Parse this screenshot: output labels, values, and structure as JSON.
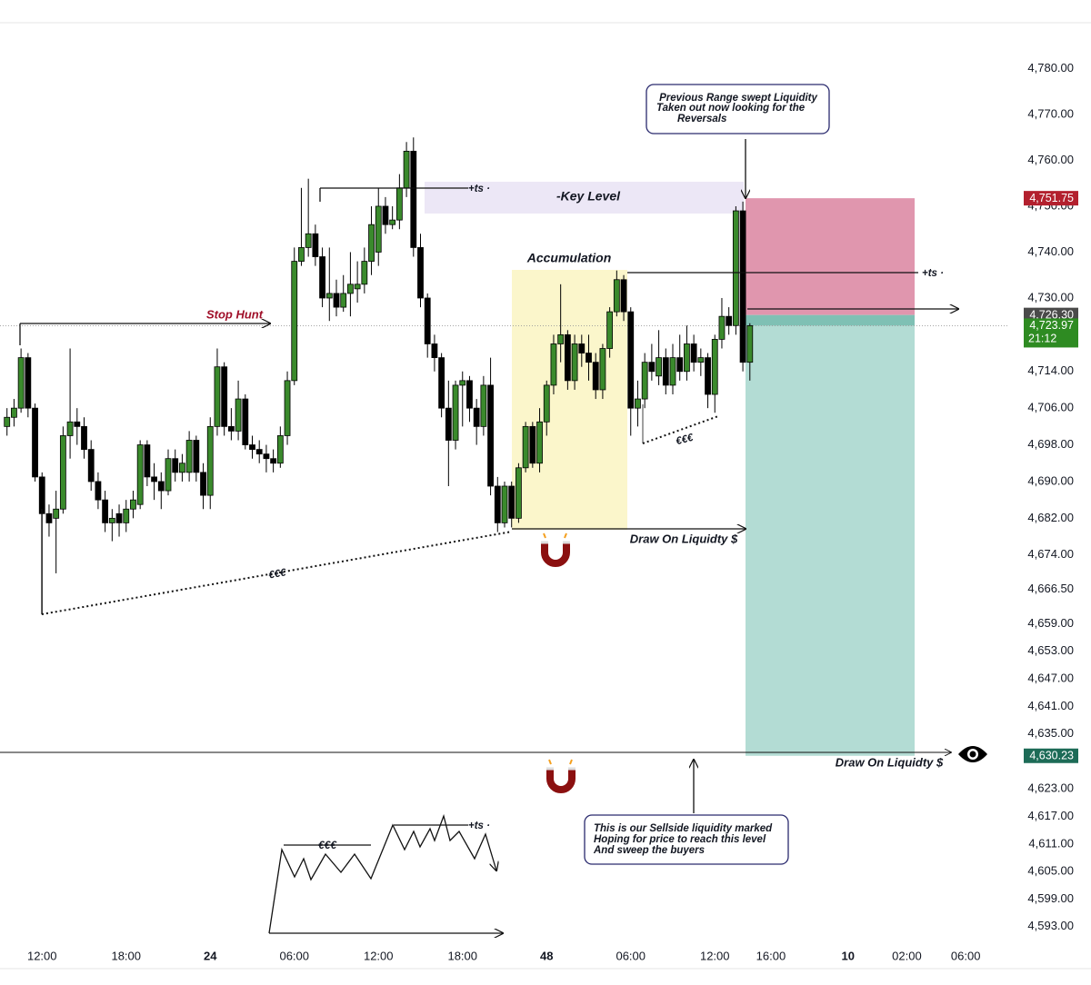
{
  "chart_data": {
    "type": "candlestick",
    "x": [
      9.5,
      10,
      10.5,
      11,
      11.5,
      12,
      12.5,
      13,
      13.5,
      14,
      14.5,
      15,
      15.5,
      16,
      16.5,
      17,
      17.5,
      18,
      18.5,
      19,
      19.5,
      20,
      20.5,
      21,
      21.5,
      22,
      22.5,
      23,
      23.5,
      24,
      24.5,
      25,
      25.5,
      26,
      26.5,
      27,
      27.5,
      28,
      28.5,
      29,
      29.5,
      30,
      30.5,
      31,
      31.5,
      32,
      32.5,
      33,
      33.5,
      34,
      34.5,
      35,
      35.5,
      36,
      36.5,
      37,
      37.5,
      38,
      38.5,
      39,
      39.5,
      40,
      40.5,
      41,
      41.5,
      42,
      42.5,
      43,
      43.5,
      44,
      44.5,
      45,
      45.5,
      46,
      46.5,
      47,
      47.5,
      48,
      48.5,
      49,
      49.5,
      50,
      50.5,
      51,
      51.5,
      52,
      52.5,
      53,
      53.5,
      54,
      54.5,
      55,
      55.5,
      56,
      56.5,
      57,
      57.5,
      58,
      58.5,
      59,
      59.5,
      60,
      60.5,
      61,
      61.5,
      62,
      62.5
    ],
    "open": [
      4702,
      4704,
      4706,
      4717,
      4706,
      4691,
      4683,
      4682,
      4684,
      4700,
      4703,
      4702,
      4697,
      4690,
      4686,
      4681,
      4683,
      4681,
      4684,
      4685,
      4698,
      4691,
      4690,
      4688,
      4695,
      4692,
      4692,
      4699,
      4692,
      4687,
      4702,
      4715,
      4702,
      4701,
      4708,
      4698,
      4697,
      4696,
      4695,
      4694,
      4700,
      4712,
      4738,
      4741,
      4744,
      4739,
      4730,
      4731,
      4728,
      4731,
      4732,
      4733,
      4738,
      4740,
      4750,
      4746,
      4747,
      4754,
      4762,
      4741,
      4730,
      4720,
      4717,
      4706,
      4699,
      4711,
      4712,
      4706,
      4702,
      4711,
      4689,
      4681,
      4689,
      4682,
      4693,
      4702,
      4694,
      4703,
      4711,
      4720,
      4722,
      4712,
      4720,
      4718,
      4716,
      4710,
      4719,
      4727,
      4734,
      4727,
      4706,
      4708,
      4716,
      4713,
      4717,
      4711,
      4717,
      4714,
      4720,
      4716,
      4717,
      4709,
      4721,
      4726,
      4724,
      4749,
      4716
    ],
    "high": [
      4706,
      4708,
      4719,
      4718,
      4707,
      4692,
      4685,
      4688,
      4702,
      4719,
      4706,
      4704,
      4699,
      4692,
      4688,
      4684,
      4685,
      4686,
      4688,
      4699,
      4699,
      4694,
      4692,
      4697,
      4697,
      4696,
      4701,
      4700,
      4694,
      4704,
      4719,
      4716,
      4706,
      4712,
      4709,
      4700,
      4699,
      4698,
      4697,
      4702,
      4714,
      4741,
      4754,
      4756,
      4746,
      4741,
      4741,
      4734,
      4735,
      4740,
      4738,
      4741,
      4750,
      4754,
      4752,
      4750,
      4757,
      4764,
      4765,
      4744,
      4731,
      4722,
      4718,
      4712,
      4712,
      4714,
      4713,
      4708,
      4713,
      4717,
      4691,
      4690,
      4690,
      4694,
      4703,
      4703,
      4706,
      4712,
      4722,
      4733,
      4723,
      4722,
      4722,
      4722,
      4718,
      4720,
      4728,
      4736,
      4735,
      4728,
      4712,
      4718,
      4720,
      4723,
      4719,
      4720,
      4722,
      4724,
      4722,
      4719,
      4718,
      4722,
      4730,
      4728,
      4750,
      4751,
      4724.5
    ],
    "low": [
      4700,
      4702,
      4705,
      4704,
      4690,
      4661,
      4678,
      4670,
      4683,
      4695,
      4698,
      4695,
      4688,
      4684,
      4679,
      4677,
      4678,
      4679,
      4682,
      4684,
      4689,
      4686,
      4684,
      4687,
      4690,
      4690,
      4690,
      4690,
      4684,
      4684,
      4700,
      4700,
      4699,
      4699,
      4697,
      4695,
      4694,
      4692,
      4692,
      4693,
      4698,
      4711,
      4737,
      4739,
      4737,
      4728,
      4725,
      4726,
      4727,
      4726,
      4729,
      4731,
      4735,
      4737,
      4744,
      4745,
      4745,
      4752,
      4739,
      4728,
      4717,
      4714,
      4704,
      4689,
      4697,
      4702,
      4703,
      4698,
      4700,
      4687,
      4679,
      4680,
      4680,
      4681,
      4692,
      4693,
      4692,
      4700,
      4709,
      4716,
      4710,
      4710,
      4715,
      4712,
      4708,
      4708,
      4717,
      4726,
      4725,
      4700,
      4702,
      4706,
      4712,
      4711,
      4709,
      4709,
      4712,
      4712,
      4714,
      4713,
      4706,
      4705,
      4719,
      4722,
      4722,
      4714,
      4712
    ],
    "close": [
      4704,
      4706,
      4717,
      4706,
      4691,
      4683,
      4681,
      4684,
      4700,
      4703,
      4702,
      4697,
      4690,
      4686,
      4681,
      4682,
      4681,
      4684,
      4686,
      4698,
      4691,
      4690,
      4688,
      4695,
      4692,
      4694,
      4699,
      4692,
      4687,
      4702,
      4715,
      4702,
      4701,
      4708,
      4698,
      4697,
      4696,
      4695,
      4694,
      4700,
      4712,
      4738,
      4741,
      4744,
      4739,
      4730,
      4731,
      4728,
      4731,
      4733,
      4733,
      4738,
      4746,
      4750,
      4746,
      4747,
      4754,
      4762,
      4741,
      4730,
      4720,
      4717,
      4706,
      4699,
      4711,
      4712,
      4706,
      4702,
      4711,
      4689,
      4681,
      4689,
      4682,
      4693,
      4702,
      4694,
      4703,
      4711,
      4720,
      4722,
      4712,
      4720,
      4718,
      4716,
      4710,
      4719,
      4727,
      4734,
      4727,
      4706,
      4708,
      4716,
      4714,
      4717,
      4711,
      4717,
      4714,
      4720,
      4716,
      4717,
      4709,
      4721,
      4726,
      4724,
      4749,
      4716,
      4723.97
    ],
    "up_color": "#3a8a2c",
    "down_color": "#000000",
    "xlim": [
      9,
      81
    ],
    "xticks": [
      {
        "value": 12,
        "label": "12:00"
      },
      {
        "value": 18,
        "label": "18:00"
      },
      24,
      {
        "value": 30,
        "label": "06:00"
      },
      {
        "value": 36,
        "label": "12:00"
      },
      {
        "value": 42,
        "label": "18:00"
      },
      48,
      {
        "value": 54,
        "label": "06:00"
      },
      {
        "value": 60,
        "label": "12:00"
      },
      {
        "value": 64,
        "label": "16:00"
      },
      {
        "value": 69.5,
        "label": "10"
      },
      {
        "value": 73.7,
        "label": "02:00"
      },
      {
        "value": 77.9,
        "label": "06:00"
      }
    ],
    "ylim": [
      4588,
      4790
    ],
    "yticks": [
      {
        "value": 4780,
        "label": "4,780.00"
      },
      {
        "value": 4770,
        "label": "4,770.00"
      },
      {
        "value": 4760,
        "label": "4,760.00"
      },
      {
        "value": 4750,
        "label": "4,750.00"
      },
      {
        "value": 4740,
        "label": "4,740.00"
      },
      {
        "value": 4730,
        "label": "4,730.00"
      },
      {
        "value": 4714,
        "label": "4,714.00"
      },
      {
        "value": 4706,
        "label": "4,706.00"
      },
      {
        "value": 4698,
        "label": "4,698.00"
      },
      {
        "value": 4690,
        "label": "4,690.00"
      },
      {
        "value": 4682,
        "label": "4,682.00"
      },
      {
        "value": 4674,
        "label": "4,674.00"
      },
      {
        "value": 4666.5,
        "label": "4,666.50"
      },
      {
        "value": 4659,
        "label": "4,659.00"
      },
      {
        "value": 4653,
        "label": "4,653.00"
      },
      {
        "value": 4647,
        "label": "4,647.00"
      },
      {
        "value": 4641,
        "label": "4,641.00"
      },
      {
        "value": 4635,
        "label": "4,635.00"
      },
      {
        "value": 4623,
        "label": "4,623.00"
      },
      {
        "value": 4617,
        "label": "4,617.00"
      },
      {
        "value": 4611,
        "label": "4,611.00"
      },
      {
        "value": 4605,
        "label": "4,605.00"
      },
      {
        "value": 4599,
        "label": "4,599.00"
      },
      {
        "value": 4593,
        "label": "4,593.00"
      }
    ],
    "grid": false,
    "position": {
      "stop": 4751.75,
      "entry": 4726.3,
      "current": 4723.97,
      "target": 4630.23,
      "stop_color": "#e096ae",
      "profit_color": "#7fc0b4",
      "target_color": "#b3dcd4"
    },
    "price_tags": [
      {
        "value": 4751.75,
        "label": "4,751.75",
        "color": "#b3202e"
      },
      {
        "value": 4726.3,
        "label": "4,726.30",
        "color": "#4a4a4a"
      },
      {
        "value": 4723.97,
        "label": "4,723.97",
        "sublabel": "21:12",
        "color": "#2e8b22"
      },
      {
        "value": 4630.23,
        "label": "4,630.23",
        "color": "#1d6b57"
      }
    ]
  },
  "annotations": {
    "callout_top": [
      "Previous Range swept Liquidity",
      "Taken out now looking for the",
      "Reversals"
    ],
    "key_level": "-Key Level",
    "accumulation": "Accumulation",
    "stop_hunt": "Stop Hunt",
    "ts_marks": [
      "+ts ·",
      "+ts ·",
      "+ts ·"
    ],
    "euro_marks": [
      "€€€",
      "€€€",
      "€€€"
    ],
    "draw_on_liquidity": [
      "Draw On Liquidty $",
      "Draw On Liquidty $"
    ],
    "callout_bottom": [
      "This is our Sellside liquidity marked",
      "Hoping for price to reach this level",
      "And sweep the buyers"
    ]
  }
}
